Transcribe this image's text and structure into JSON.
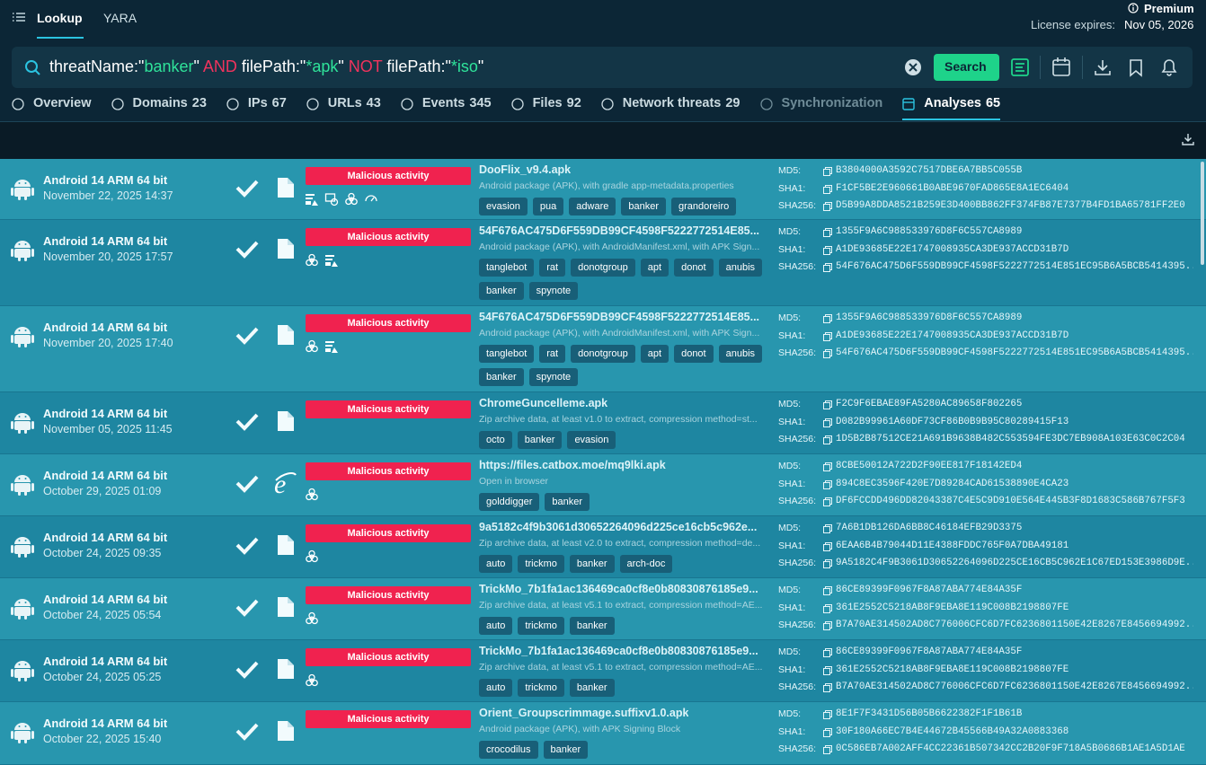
{
  "header": {
    "nav": [
      "Lookup",
      "YARA"
    ],
    "premium": "Premium",
    "license_label": "License expires:",
    "license_date": "Nov 05, 2026"
  },
  "search": {
    "query": [
      {
        "text": "threatName:\"",
        "color": "#ffffff"
      },
      {
        "text": "banker",
        "color": "#2fe39a"
      },
      {
        "text": "\"",
        "color": "#ffffff"
      },
      {
        "text": " AND ",
        "color": "#f0335d"
      },
      {
        "text": "filePath:\"",
        "color": "#ffffff"
      },
      {
        "text": "*apk",
        "color": "#2fe39a"
      },
      {
        "text": "\"",
        "color": "#ffffff"
      },
      {
        "text": " NOT ",
        "color": "#f0335d"
      },
      {
        "text": "filePath:\"",
        "color": "#ffffff"
      },
      {
        "text": "*iso",
        "color": "#2fe39a"
      },
      {
        "text": "\"",
        "color": "#ffffff"
      }
    ],
    "button": "Search"
  },
  "tabs": [
    {
      "label": "Overview"
    },
    {
      "label": "Domains",
      "count": 23
    },
    {
      "label": "IPs",
      "count": 67
    },
    {
      "label": "URLs",
      "count": 43
    },
    {
      "label": "Events",
      "count": 345
    },
    {
      "label": "Files",
      "count": 92
    },
    {
      "label": "Network threats",
      "count": 29
    },
    {
      "label": "Synchronization",
      "state": "disabled"
    },
    {
      "label": "Analyses",
      "count": 65,
      "state": "active"
    }
  ],
  "hash_labels": [
    "MD5:",
    "SHA1:",
    "SHA256:"
  ],
  "rows": [
    {
      "os": "Android 14 ARM 64 bit",
      "date": "November 22, 2025 14:37",
      "verdict": "Malicious activity",
      "name": "DooFlix_v9.4.apk",
      "description": "Android package (APK), with gradle app-metadata.properties",
      "tags": [
        "evasion",
        "pua",
        "adware",
        "banker",
        "grandoreiro"
      ],
      "hashes": [
        "B3804000A3592C7517DBE6A7BB5C055B",
        "F1CF5BE2E960661B0ABE9670FAD865E8A1EC6404",
        "D5B99A8DDA8521B259E3D400BB862FF374FB87E7377B4FD1BA65781FF2E0"
      ]
    },
    {
      "os": "Android 14 ARM 64 bit",
      "date": "November 20, 2025 17:57",
      "verdict": "Malicious activity",
      "name": "54F676AC475D6F559DB99CF4598F5222772514E85...",
      "description": "Android package (APK), with AndroidManifest.xml, with APK Sign...",
      "tags": [
        "tanglebot",
        "rat",
        "donotgroup",
        "apt",
        "donot",
        "anubis",
        "banker",
        "spynote"
      ],
      "hashes": [
        "1355F9A6C988533976D8F6C557CA8989",
        "A1DE93685E22E1747008935CA3DE937ACCD31B7D",
        "54F676AC475D6F559DB99CF4598F5222772514E851EC95B6A5BCB5414395..."
      ]
    },
    {
      "os": "Android 14 ARM 64 bit",
      "date": "November 20, 2025 17:40",
      "verdict": "Malicious activity",
      "name": "54F676AC475D6F559DB99CF4598F5222772514E85...",
      "description": "Android package (APK), with AndroidManifest.xml, with APK Sign...",
      "tags": [
        "tanglebot",
        "rat",
        "donotgroup",
        "apt",
        "donot",
        "anubis",
        "banker",
        "spynote"
      ],
      "hashes": [
        "1355F9A6C988533976D8F6C557CA8989",
        "A1DE93685E22E1747008935CA3DE937ACCD31B7D",
        "54F676AC475D6F559DB99CF4598F5222772514E851EC95B6A5BCB5414395..."
      ]
    },
    {
      "os": "Android 14 ARM 64 bit",
      "date": "November 05, 2025 11:45",
      "verdict": "Malicious activity",
      "name": "ChromeGuncelleme.apk",
      "description": "Zip archive data, at least v1.0 to extract, compression method=st...",
      "tags": [
        "octo",
        "banker",
        "evasion"
      ],
      "hashes": [
        "F2C9F6EBAE89FA5280AC89658F802265",
        "D082B99961A60DF73CF86B0B9B95C80289415F13",
        "1D5B2B87512CE21A691B9638B482C553594FE3DC7EB908A103E63C0C2C04"
      ]
    },
    {
      "os": "Android 14 ARM 64 bit",
      "date": "October 29, 2025 01:09",
      "verdict": "Malicious activity",
      "name": "https://files.catbox.moe/mq9lki.apk",
      "description": "Open in browser",
      "tags": [
        "golddigger",
        "banker"
      ],
      "hashes": [
        "8CBE50012A722D2F90EE817F18142ED4",
        "894C8EC3596F420E7D89284CAD61538890E4CA23",
        "DF6FCCDD496DD82043387C4E5C9D910E564E445B3F8D1683C586B767F5F3"
      ]
    },
    {
      "os": "Android 14 ARM 64 bit",
      "date": "October 24, 2025 09:35",
      "verdict": "Malicious activity",
      "name": "9a5182c4f9b3061d30652264096d225ce16cb5c962e...",
      "description": "Zip archive data, at least v2.0 to extract, compression method=de...",
      "tags": [
        "auto",
        "trickmo",
        "banker",
        "arch-doc"
      ],
      "hashes": [
        "7A6B1DB126DA6BB8C46184EFB29D3375",
        "6EAA6B4B79044D11E4388FDDC765F0A7DBA49181",
        "9A5182C4F9B3061D30652264096D225CE16CB5C962E1C67ED153E3986D9E..."
      ]
    },
    {
      "os": "Android 14 ARM 64 bit",
      "date": "October 24, 2025 05:54",
      "verdict": "Malicious activity",
      "name": "TrickMo_7b1fa1ac136469ca0cf8e0b80830876185e9...",
      "description": "Zip archive data, at least v5.1 to extract, compression method=AE...",
      "tags": [
        "auto",
        "trickmo",
        "banker"
      ],
      "hashes": [
        "86CE89399F0967F8A87ABA774E84A35F",
        "361E2552C5218AB8F9EBA8E119C008B2198807FE",
        "B7A70AE314502AD8C776006CFC6D7FC6236801150E42E8267E8456694992..."
      ]
    },
    {
      "os": "Android 14 ARM 64 bit",
      "date": "October 24, 2025 05:25",
      "verdict": "Malicious activity",
      "name": "TrickMo_7b1fa1ac136469ca0cf8e0b80830876185e9...",
      "description": "Zip archive data, at least v5.1 to extract, compression method=AE...",
      "tags": [
        "auto",
        "trickmo",
        "banker"
      ],
      "hashes": [
        "86CE89399F0967F8A87ABA774E84A35F",
        "361E2552C5218AB8F9EBA8E119C008B2198807FE",
        "B7A70AE314502AD8C776006CFC6D7FC6236801150E42E8267E8456694992..."
      ]
    },
    {
      "os": "Android 14 ARM 64 bit",
      "date": "October 22, 2025 15:40",
      "verdict": "Malicious activity",
      "name": "Orient_Groupscrimmage.suffixv1.0.apk",
      "description": "Android package (APK), with APK Signing Block",
      "tags": [
        "crocodilus",
        "banker"
      ],
      "hashes": [
        "8E1F7F3431D56B05B6622382F1F1B61B",
        "30F180A66EC7B4E44672B45566B49A32A0883368",
        "0C586EB7A002AFF4CC22361B507342CC2B20F9F718A5B0686B1AE1A5D1AE"
      ]
    }
  ]
}
